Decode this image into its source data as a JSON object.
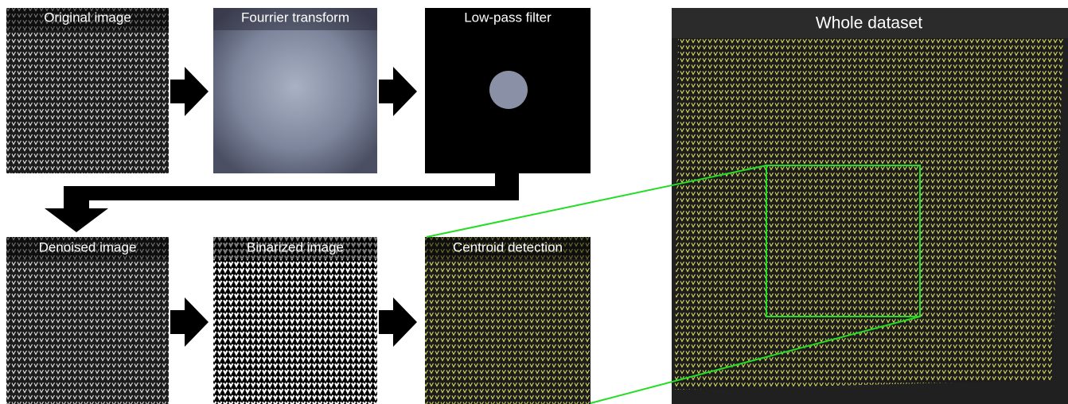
{
  "panels": [
    {
      "label": "Original image"
    },
    {
      "label": "Fourrier transform"
    },
    {
      "label": "Low-pass filter"
    },
    {
      "label": "Denoised image"
    },
    {
      "label": "Binarized image"
    },
    {
      "label": "Centroid detection"
    }
  ],
  "dataset": {
    "label": "Whole dataset"
  }
}
